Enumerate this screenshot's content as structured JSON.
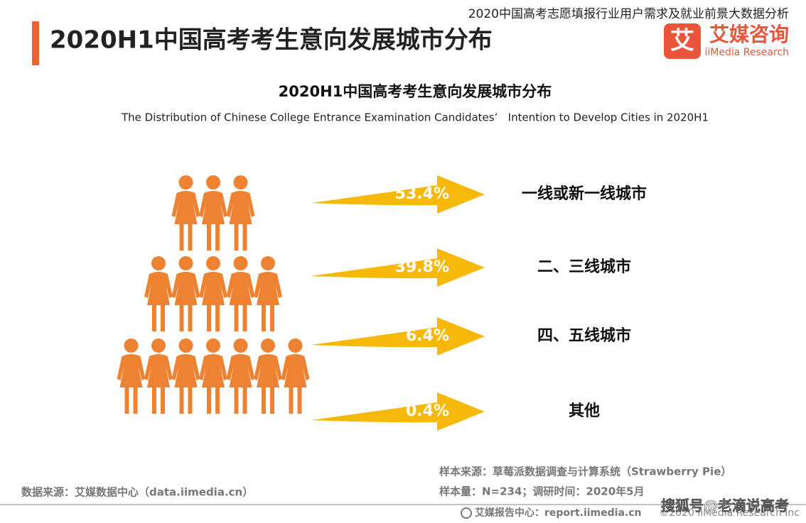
{
  "header": {
    "title": "2020H1中国高考考生意向发展城市分布",
    "report_title": "2020中国高考志愿填报行业用户需求及就业前景大数据分析",
    "logo_mark": "艾",
    "logo_name": "艾媒咨询",
    "logo_sub": "iiMedia Research"
  },
  "chart_data": {
    "type": "arrow",
    "title": "2020H1中国高考考生意向发展城市分布",
    "subtitle": "The Distribution of Chinese College Entrance Examination Candidates’   Intention to Develop Cities in 2020H1",
    "categories": [
      "一线或新一线城市",
      "二、三线城市",
      "四、五线城市",
      "其他"
    ],
    "values": [
      53.4,
      39.8,
      6.4,
      0.4
    ],
    "value_labels": [
      "53.4%",
      "39.8%",
      "6.4%",
      "0.4%"
    ],
    "color": "#f6b90a"
  },
  "footer": {
    "sample_source": "样本来源：草莓派数据调查与计算系统（Strawberry Pie）",
    "sample_size": "样本量：N=234；调研时间：2020年5月",
    "data_source": "数据来源：艾媒数据中心（data.iimedia.cn）",
    "report_center": "艾媒报告中心：report.iimedia.cn",
    "copyright": "©2020  iiMedia Research  Inc",
    "watermark": "搜狐号@老滴说高考"
  }
}
